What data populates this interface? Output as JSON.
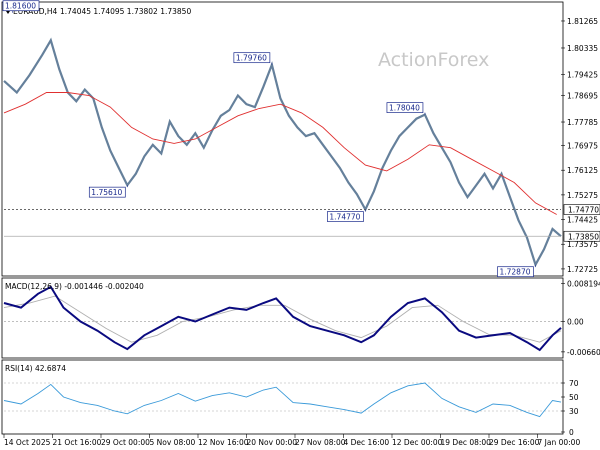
{
  "chart_data": {
    "type": "line",
    "symbol": "EURAUD,H4",
    "ohlc": "1.74045 1.74095 1.73802 1.73850",
    "watermark": "ActionForex",
    "colors": {
      "price": "#4a6a8a",
      "ma": "#e03030",
      "macd_main": "#0a0a80",
      "macd_signal": "#b0b0b0",
      "rsi": "#3a9ad9",
      "annotation": "#1a2a8c",
      "grid": "#cfcfcf",
      "axis": "#000000"
    },
    "x_labels": [
      "14 Oct 2025",
      "21 Oct 16:00",
      "29 Oct 00:00",
      "5 Nov 08:00",
      "12 Nov 16:00",
      "20 Nov 00:00",
      "27 Nov 08:00",
      "4 Dec 16:00",
      "12 Dec 00:00",
      "19 Dec 08:00",
      "29 Dec 16:00",
      "7 Jan 00:00"
    ],
    "price_panel": {
      "y_ticks": [
        "1.81265",
        "1.80335",
        "1.79425",
        "1.78695",
        "1.77785",
        "1.76975",
        "1.76125",
        "1.75275",
        "1.74425",
        "1.73575",
        "1.72725"
      ],
      "ylim": [
        1.7255,
        1.8185
      ],
      "series": [
        {
          "x": 0,
          "y": 1.792
        },
        {
          "x": 3,
          "y": 1.788
        },
        {
          "x": 6,
          "y": 1.794
        },
        {
          "x": 9,
          "y": 1.801
        },
        {
          "x": 11,
          "y": 1.806
        },
        {
          "x": 13,
          "y": 1.796
        },
        {
          "x": 15,
          "y": 1.788
        },
        {
          "x": 17,
          "y": 1.785
        },
        {
          "x": 19,
          "y": 1.789
        },
        {
          "x": 21,
          "y": 1.786
        },
        {
          "x": 23,
          "y": 1.776
        },
        {
          "x": 25,
          "y": 1.768
        },
        {
          "x": 27,
          "y": 1.762
        },
        {
          "x": 29,
          "y": 1.7561
        },
        {
          "x": 31,
          "y": 1.76
        },
        {
          "x": 33,
          "y": 1.766
        },
        {
          "x": 35,
          "y": 1.77
        },
        {
          "x": 37,
          "y": 1.767
        },
        {
          "x": 39,
          "y": 1.778
        },
        {
          "x": 41,
          "y": 1.773
        },
        {
          "x": 43,
          "y": 1.77
        },
        {
          "x": 45,
          "y": 1.774
        },
        {
          "x": 47,
          "y": 1.769
        },
        {
          "x": 49,
          "y": 1.775
        },
        {
          "x": 51,
          "y": 1.78
        },
        {
          "x": 53,
          "y": 1.782
        },
        {
          "x": 55,
          "y": 1.787
        },
        {
          "x": 57,
          "y": 1.784
        },
        {
          "x": 59,
          "y": 1.783
        },
        {
          "x": 61,
          "y": 1.79
        },
        {
          "x": 63,
          "y": 1.7976
        },
        {
          "x": 65,
          "y": 1.786
        },
        {
          "x": 67,
          "y": 1.78
        },
        {
          "x": 69,
          "y": 1.776
        },
        {
          "x": 71,
          "y": 1.773
        },
        {
          "x": 73,
          "y": 1.774
        },
        {
          "x": 75,
          "y": 1.77
        },
        {
          "x": 77,
          "y": 1.766
        },
        {
          "x": 79,
          "y": 1.762
        },
        {
          "x": 81,
          "y": 1.757
        },
        {
          "x": 83,
          "y": 1.753
        },
        {
          "x": 85,
          "y": 1.7477
        },
        {
          "x": 87,
          "y": 1.754
        },
        {
          "x": 89,
          "y": 1.762
        },
        {
          "x": 91,
          "y": 1.768
        },
        {
          "x": 93,
          "y": 1.773
        },
        {
          "x": 95,
          "y": 1.776
        },
        {
          "x": 97,
          "y": 1.779
        },
        {
          "x": 99,
          "y": 1.7804
        },
        {
          "x": 101,
          "y": 1.774
        },
        {
          "x": 103,
          "y": 1.769
        },
        {
          "x": 105,
          "y": 1.764
        },
        {
          "x": 107,
          "y": 1.757
        },
        {
          "x": 109,
          "y": 1.752
        },
        {
          "x": 111,
          "y": 1.756
        },
        {
          "x": 113,
          "y": 1.76
        },
        {
          "x": 115,
          "y": 1.755
        },
        {
          "x": 117,
          "y": 1.76
        },
        {
          "x": 119,
          "y": 1.752
        },
        {
          "x": 121,
          "y": 1.744
        },
        {
          "x": 123,
          "y": 1.738
        },
        {
          "x": 125,
          "y": 1.7287
        },
        {
          "x": 127,
          "y": 1.734
        },
        {
          "x": 129,
          "y": 1.741
        },
        {
          "x": 131,
          "y": 1.7385
        }
      ],
      "ma_series": [
        {
          "x": 0,
          "y": 1.781
        },
        {
          "x": 5,
          "y": 1.784
        },
        {
          "x": 10,
          "y": 1.788
        },
        {
          "x": 15,
          "y": 1.788
        },
        {
          "x": 20,
          "y": 1.787
        },
        {
          "x": 25,
          "y": 1.783
        },
        {
          "x": 30,
          "y": 1.776
        },
        {
          "x": 35,
          "y": 1.772
        },
        {
          "x": 40,
          "y": 1.7705
        },
        {
          "x": 45,
          "y": 1.772
        },
        {
          "x": 50,
          "y": 1.776
        },
        {
          "x": 55,
          "y": 1.78
        },
        {
          "x": 60,
          "y": 1.7825
        },
        {
          "x": 65,
          "y": 1.784
        },
        {
          "x": 70,
          "y": 1.781
        },
        {
          "x": 75,
          "y": 1.776
        },
        {
          "x": 80,
          "y": 1.769
        },
        {
          "x": 85,
          "y": 1.763
        },
        {
          "x": 90,
          "y": 1.761
        },
        {
          "x": 95,
          "y": 1.765
        },
        {
          "x": 100,
          "y": 1.77
        },
        {
          "x": 105,
          "y": 1.769
        },
        {
          "x": 110,
          "y": 1.765
        },
        {
          "x": 115,
          "y": 1.761
        },
        {
          "x": 120,
          "y": 1.757
        },
        {
          "x": 125,
          "y": 1.75
        },
        {
          "x": 130,
          "y": 1.746
        }
      ],
      "annotations": [
        {
          "label": "1.81600",
          "x": 2,
          "y": 1.8155
        },
        {
          "label": "1.75610",
          "x": 29,
          "y": 1.7561
        },
        {
          "label": "1.79760",
          "x": 63,
          "y": 1.7976
        },
        {
          "label": "1.74770",
          "x": 85,
          "y": 1.7477
        },
        {
          "label": "1.78040",
          "x": 99,
          "y": 1.7804
        },
        {
          "label": "1.72870",
          "x": 125,
          "y": 1.7287
        }
      ],
      "hlines": [
        {
          "label": "1.74770",
          "y": 1.7477,
          "style": "dotted"
        },
        {
          "label": "1.73850",
          "y": 1.7385,
          "style": "solid"
        }
      ]
    },
    "macd_panel": {
      "label": "MACD(12,26,9) -0.001446 -0.002040",
      "y_ticks": [
        "0.008194",
        "0.00",
        "-0.006604"
      ],
      "ylim": [
        -0.0075,
        0.009
      ],
      "main": [
        {
          "x": 0,
          "y": 0.004
        },
        {
          "x": 4,
          "y": 0.003
        },
        {
          "x": 8,
          "y": 0.006
        },
        {
          "x": 11,
          "y": 0.0075
        },
        {
          "x": 14,
          "y": 0.003
        },
        {
          "x": 18,
          "y": 0.0
        },
        {
          "x": 22,
          "y": -0.002
        },
        {
          "x": 26,
          "y": -0.0045
        },
        {
          "x": 29,
          "y": -0.006
        },
        {
          "x": 33,
          "y": -0.003
        },
        {
          "x": 37,
          "y": -0.001
        },
        {
          "x": 41,
          "y": 0.001
        },
        {
          "x": 45,
          "y": 0.0
        },
        {
          "x": 49,
          "y": 0.0015
        },
        {
          "x": 53,
          "y": 0.003
        },
        {
          "x": 57,
          "y": 0.0025
        },
        {
          "x": 61,
          "y": 0.004
        },
        {
          "x": 64,
          "y": 0.005
        },
        {
          "x": 68,
          "y": 0.001
        },
        {
          "x": 72,
          "y": -0.001
        },
        {
          "x": 76,
          "y": -0.002
        },
        {
          "x": 80,
          "y": -0.003
        },
        {
          "x": 84,
          "y": -0.0045
        },
        {
          "x": 87,
          "y": -0.003
        },
        {
          "x": 91,
          "y": 0.001
        },
        {
          "x": 95,
          "y": 0.004
        },
        {
          "x": 99,
          "y": 0.005
        },
        {
          "x": 103,
          "y": 0.002
        },
        {
          "x": 107,
          "y": -0.002
        },
        {
          "x": 111,
          "y": -0.0035
        },
        {
          "x": 115,
          "y": -0.003
        },
        {
          "x": 119,
          "y": -0.0025
        },
        {
          "x": 123,
          "y": -0.0045
        },
        {
          "x": 126,
          "y": -0.0062
        },
        {
          "x": 129,
          "y": -0.003
        },
        {
          "x": 131,
          "y": -0.0014
        }
      ],
      "signal": [
        {
          "x": 0,
          "y": 0.003
        },
        {
          "x": 6,
          "y": 0.004
        },
        {
          "x": 12,
          "y": 0.0055
        },
        {
          "x": 18,
          "y": 0.002
        },
        {
          "x": 24,
          "y": -0.0015
        },
        {
          "x": 30,
          "y": -0.0045
        },
        {
          "x": 36,
          "y": -0.003
        },
        {
          "x": 42,
          "y": 0.0
        },
        {
          "x": 48,
          "y": 0.001
        },
        {
          "x": 54,
          "y": 0.0025
        },
        {
          "x": 60,
          "y": 0.0035
        },
        {
          "x": 66,
          "y": 0.0035
        },
        {
          "x": 72,
          "y": 0.0005
        },
        {
          "x": 78,
          "y": -0.002
        },
        {
          "x": 84,
          "y": -0.0035
        },
        {
          "x": 90,
          "y": -0.001
        },
        {
          "x": 96,
          "y": 0.003
        },
        {
          "x": 102,
          "y": 0.0035
        },
        {
          "x": 108,
          "y": 0.0
        },
        {
          "x": 114,
          "y": -0.0028
        },
        {
          "x": 120,
          "y": -0.003
        },
        {
          "x": 126,
          "y": -0.0045
        },
        {
          "x": 131,
          "y": -0.002
        }
      ]
    },
    "rsi_panel": {
      "label": "RSI(14) 42.6874",
      "y_ticks": [
        "70",
        "50",
        "30",
        "0"
      ],
      "ylim": [
        0,
        100
      ],
      "series": [
        {
          "x": 0,
          "y": 45
        },
        {
          "x": 4,
          "y": 40
        },
        {
          "x": 8,
          "y": 55
        },
        {
          "x": 11,
          "y": 68
        },
        {
          "x": 14,
          "y": 50
        },
        {
          "x": 18,
          "y": 42
        },
        {
          "x": 22,
          "y": 38
        },
        {
          "x": 26,
          "y": 30
        },
        {
          "x": 29,
          "y": 26
        },
        {
          "x": 33,
          "y": 38
        },
        {
          "x": 37,
          "y": 45
        },
        {
          "x": 41,
          "y": 55
        },
        {
          "x": 45,
          "y": 44
        },
        {
          "x": 49,
          "y": 52
        },
        {
          "x": 53,
          "y": 56
        },
        {
          "x": 57,
          "y": 50
        },
        {
          "x": 61,
          "y": 60
        },
        {
          "x": 64,
          "y": 64
        },
        {
          "x": 68,
          "y": 42
        },
        {
          "x": 72,
          "y": 40
        },
        {
          "x": 76,
          "y": 36
        },
        {
          "x": 80,
          "y": 32
        },
        {
          "x": 84,
          "y": 27
        },
        {
          "x": 87,
          "y": 40
        },
        {
          "x": 91,
          "y": 56
        },
        {
          "x": 95,
          "y": 66
        },
        {
          "x": 99,
          "y": 70
        },
        {
          "x": 103,
          "y": 48
        },
        {
          "x": 107,
          "y": 36
        },
        {
          "x": 111,
          "y": 28
        },
        {
          "x": 115,
          "y": 40
        },
        {
          "x": 119,
          "y": 38
        },
        {
          "x": 123,
          "y": 28
        },
        {
          "x": 126,
          "y": 22
        },
        {
          "x": 129,
          "y": 45
        },
        {
          "x": 131,
          "y": 42.7
        }
      ]
    }
  }
}
